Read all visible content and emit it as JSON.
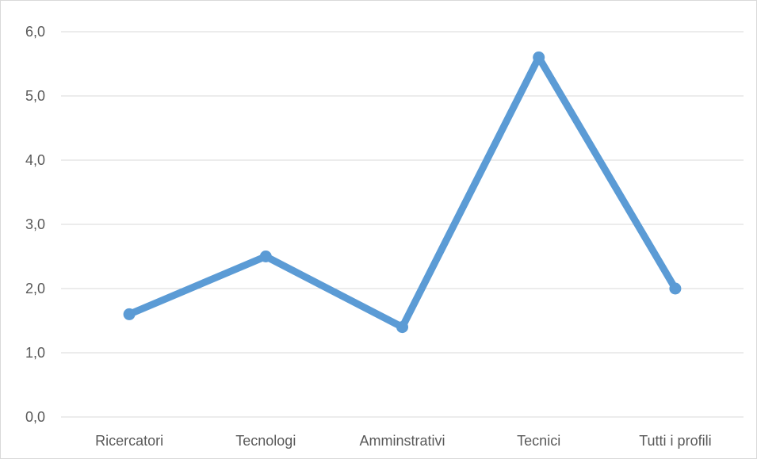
{
  "chart_data": {
    "type": "line",
    "title": "",
    "xlabel": "",
    "ylabel": "",
    "categories": [
      "Ricercatori",
      "Tecnologi",
      "Amminstrativi",
      "Tecnici",
      "Tutti i profili"
    ],
    "series": [
      {
        "name": "",
        "values": [
          1.6,
          2.5,
          1.4,
          5.6,
          2.0
        ],
        "color": "#5b9bd5"
      }
    ],
    "ylim": [
      0,
      6
    ],
    "yticks": [
      "0,0",
      "1,0",
      "2,0",
      "3,0",
      "4,0",
      "5,0",
      "6,0"
    ],
    "grid": true,
    "legend": "none"
  }
}
